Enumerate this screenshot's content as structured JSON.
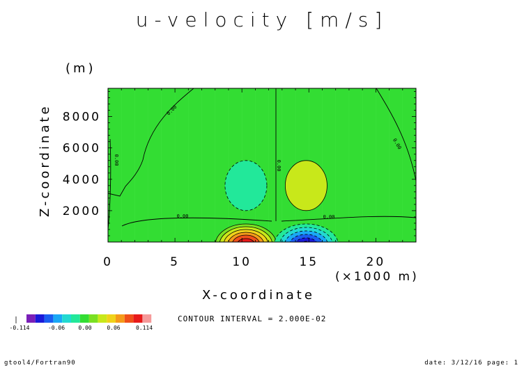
{
  "title": "u-velocity [m/s]",
  "z_unit": "(m)",
  "contour_interval_text": "CONTOUR INTERVAL = 2.000E-02",
  "footer": {
    "left": "gtool4/Fortran90",
    "right": "date: 3/12/16 page: 1"
  },
  "colors": {
    "background_field": "#33dd33",
    "contour_line": "#000000"
  },
  "chart_data": {
    "type": "heatmap",
    "title": "u-velocity [m/s]",
    "xlabel": "X-coordinate",
    "x_unit": "(×1000 m)",
    "ylabel": "Z-coordinate",
    "y_unit": "(m)",
    "xlim": [
      0,
      23
    ],
    "ylim": [
      0,
      9800
    ],
    "x_ticks": [
      0,
      5,
      10,
      15,
      20
    ],
    "y_ticks": [
      2000,
      4000,
      6000,
      8000
    ],
    "contour_interval": 0.02,
    "contour_labels": [
      "0.00",
      "0.00",
      "0.00",
      "0.00",
      "0.00",
      "0.00"
    ],
    "colorbar": {
      "tick_labels": [
        "-0.114",
        "-0.06",
        "0.00",
        "0.06",
        "0.114"
      ],
      "colors": [
        "#7a1fb8",
        "#1a1ad9",
        "#1a5ef0",
        "#1aa8f5",
        "#22d9d1",
        "#22e89a",
        "#33dd33",
        "#7ae022",
        "#c8e81a",
        "#f0d21a",
        "#f59a1a",
        "#f0501a",
        "#e81a1a",
        "#f59a9a"
      ]
    },
    "features": [
      {
        "kind": "positive core",
        "x": 10.3,
        "z": 0,
        "value": 0.114
      },
      {
        "kind": "negative core",
        "x": 14.8,
        "z": 0,
        "value": -0.114
      },
      {
        "kind": "negative anomaly",
        "x": 10.3,
        "z": 3600,
        "value": -0.02
      },
      {
        "kind": "positive anomaly",
        "x": 14.8,
        "z": 3600,
        "value": 0.02
      }
    ]
  }
}
